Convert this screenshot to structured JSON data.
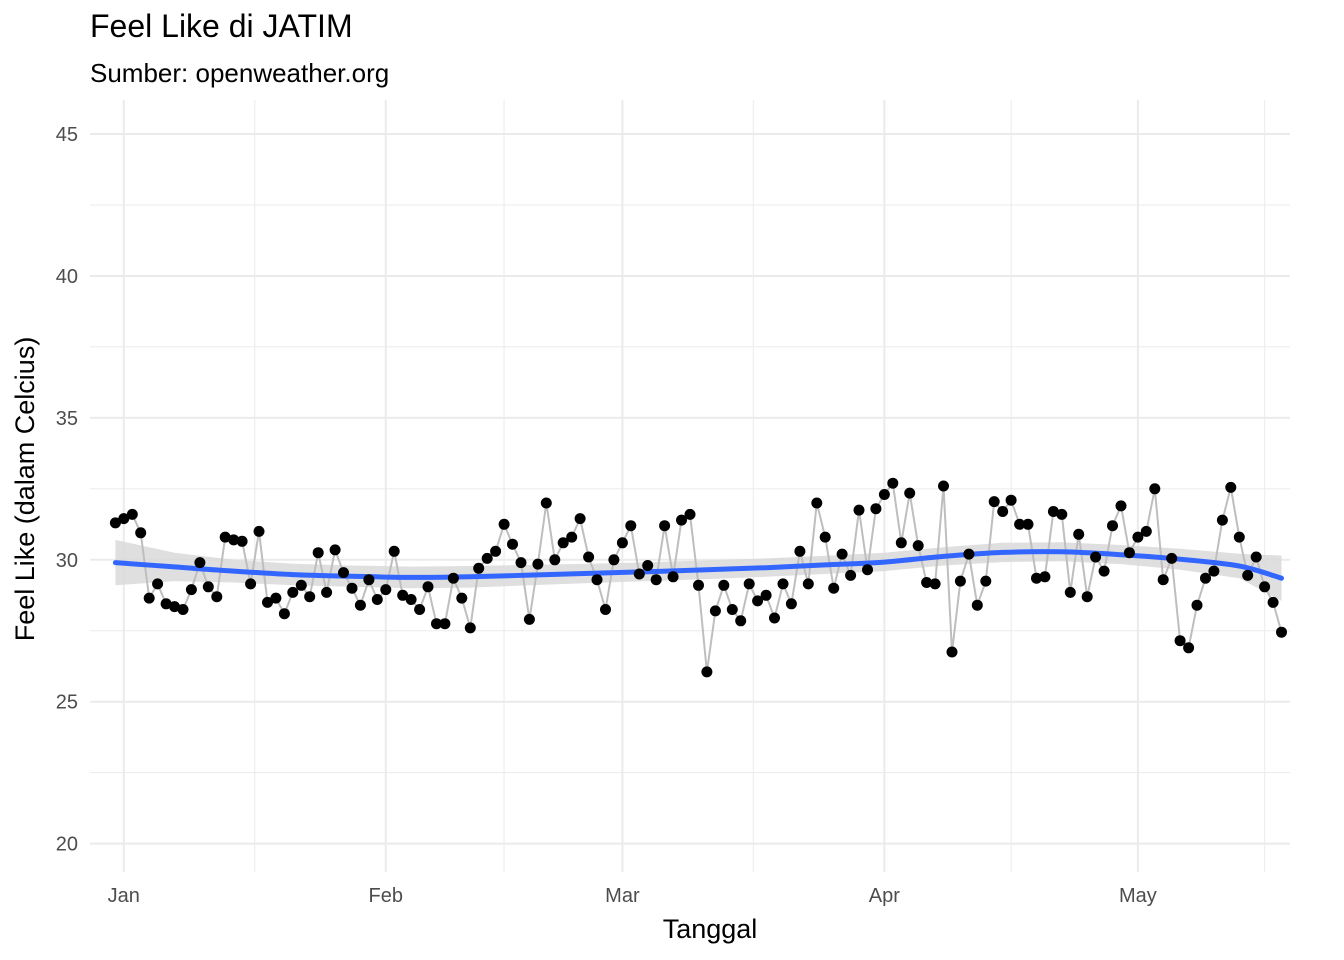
{
  "chart_data": {
    "type": "line",
    "title": "Feel Like di JATIM",
    "subtitle": "Sumber: openweather.org",
    "xlabel": "Tanggal",
    "ylabel": "Feel Like (dalam Celcius)",
    "x_start": "2021-12-31",
    "xlim": [
      "2021-12-28",
      "2022-05-19"
    ],
    "ylim": [
      19,
      46.2
    ],
    "y_ticks": [
      20,
      25,
      30,
      35,
      40,
      45
    ],
    "x_ticks": [
      {
        "date": "2022-01-01",
        "label": "Jan"
      },
      {
        "date": "2022-02-01",
        "label": "Feb"
      },
      {
        "date": "2022-03-01",
        "label": "Mar"
      },
      {
        "date": "2022-04-01",
        "label": "Apr"
      },
      {
        "date": "2022-05-01",
        "label": "May"
      }
    ],
    "grid": true,
    "colors": {
      "points": "#000000",
      "line": "#bebebe",
      "smooth": "#3366ff",
      "band": "#d9d9d9",
      "grid": "#ebebeb"
    },
    "series": [
      {
        "values": [
          31.3,
          31.45,
          31.6,
          30.95,
          28.65,
          29.15,
          28.45,
          28.35,
          28.25,
          28.95,
          29.9,
          29.05,
          28.7,
          30.8,
          30.7,
          30.65,
          29.15,
          31.0,
          28.5,
          28.65,
          28.1,
          28.85,
          29.1,
          28.7,
          30.25,
          28.85,
          30.35,
          29.55,
          29.0,
          28.4,
          29.3,
          28.6,
          28.95,
          30.3,
          28.75,
          28.6,
          28.25,
          29.05,
          27.75,
          27.75,
          29.35,
          28.65,
          27.6,
          29.7,
          30.05,
          30.3,
          31.25,
          30.55,
          29.9,
          27.9,
          29.85,
          32.0,
          30.0,
          30.6,
          30.8,
          31.45,
          30.1,
          29.3,
          28.25,
          30.0,
          30.6,
          31.2,
          29.5,
          29.8,
          29.3,
          31.2,
          29.4,
          31.4,
          31.6,
          29.1,
          26.05,
          28.2,
          29.1,
          28.25,
          27.85,
          29.15,
          28.55,
          28.75,
          27.95,
          29.15,
          28.45,
          30.3,
          29.15,
          32.0,
          30.8,
          29.0,
          30.2,
          29.45,
          31.75,
          29.65,
          31.8,
          32.3,
          32.7,
          30.6,
          32.35,
          30.5,
          29.2,
          29.15,
          32.6,
          26.75,
          29.25,
          30.2,
          28.4,
          29.25,
          32.05,
          31.7,
          32.1,
          31.25,
          31.25,
          29.35,
          29.4,
          31.7,
          31.6,
          28.85,
          30.9,
          28.7,
          30.1,
          29.6,
          31.2,
          31.9,
          30.25,
          30.8,
          31.0,
          32.5,
          29.3,
          30.05,
          27.15,
          26.9,
          28.4,
          29.35,
          29.6,
          31.4,
          32.55,
          30.8,
          29.45,
          30.1,
          29.05,
          28.5,
          27.45
        ]
      }
    ],
    "smooth": {
      "days": [
        0,
        7,
        14,
        21,
        28,
        35,
        42,
        49,
        56,
        63,
        70,
        77,
        84,
        91,
        98,
        105,
        112,
        119,
        126,
        133,
        138
      ],
      "fit": [
        29.9,
        29.75,
        29.6,
        29.48,
        29.42,
        29.38,
        29.4,
        29.46,
        29.52,
        29.58,
        29.65,
        29.72,
        29.82,
        29.92,
        30.12,
        30.26,
        30.28,
        30.18,
        30.02,
        29.78,
        29.35
      ],
      "lo": [
        29.1,
        29.25,
        29.2,
        29.1,
        29.05,
        29.0,
        29.02,
        29.1,
        29.18,
        29.25,
        29.32,
        29.4,
        29.5,
        29.6,
        29.8,
        29.92,
        29.95,
        29.85,
        29.65,
        29.35,
        28.55
      ],
      "hi": [
        30.7,
        30.25,
        30.0,
        29.86,
        29.8,
        29.76,
        29.78,
        29.82,
        29.86,
        29.91,
        29.98,
        30.05,
        30.14,
        30.25,
        30.44,
        30.6,
        30.62,
        30.52,
        30.39,
        30.21,
        30.15
      ]
    }
  }
}
